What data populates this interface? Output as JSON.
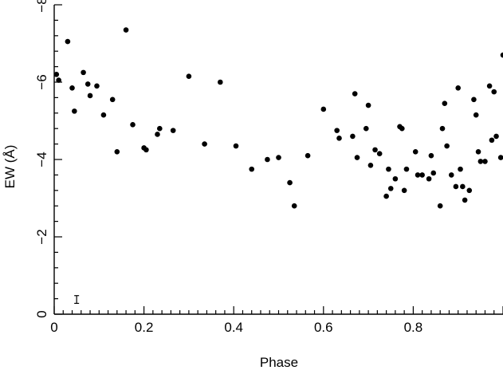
{
  "chart_data": {
    "type": "scatter",
    "title": "",
    "xlabel": "Phase",
    "ylabel": "EW (Å)",
    "xlim": [
      0,
      1.0
    ],
    "ylim": [
      0,
      -8
    ],
    "x_ticks": [
      0,
      0.2,
      0.4,
      0.6,
      0.8
    ],
    "x_tick_labels": [
      "0",
      "0.2",
      "0.4",
      "0.6",
      "0.8"
    ],
    "y_ticks": [
      0,
      -2,
      -4,
      -6,
      -8
    ],
    "y_tick_labels": [
      "0",
      "−2",
      "−4",
      "−6",
      "−8"
    ],
    "grid": false,
    "legend": "none",
    "error_bar": {
      "x": 0.05,
      "y_low": -0.28,
      "y_high": -0.48
    },
    "series": [
      {
        "points": [
          [
            0.005,
            -6.2
          ],
          [
            0.01,
            -6.05
          ],
          [
            0.03,
            -7.05
          ],
          [
            0.04,
            -5.85
          ],
          [
            0.045,
            -5.25
          ],
          [
            0.065,
            -6.25
          ],
          [
            0.075,
            -5.95
          ],
          [
            0.08,
            -5.65
          ],
          [
            0.095,
            -5.9
          ],
          [
            0.11,
            -5.15
          ],
          [
            0.13,
            -5.55
          ],
          [
            0.14,
            -4.2
          ],
          [
            0.16,
            -7.35
          ],
          [
            0.175,
            -4.9
          ],
          [
            0.2,
            -4.3
          ],
          [
            0.205,
            -4.25
          ],
          [
            0.23,
            -4.65
          ],
          [
            0.235,
            -4.8
          ],
          [
            0.265,
            -4.75
          ],
          [
            0.3,
            -6.15
          ],
          [
            0.335,
            -4.4
          ],
          [
            0.37,
            -6.0
          ],
          [
            0.405,
            -4.35
          ],
          [
            0.44,
            -3.75
          ],
          [
            0.475,
            -4.0
          ],
          [
            0.5,
            -4.05
          ],
          [
            0.525,
            -3.4
          ],
          [
            0.535,
            -2.8
          ],
          [
            0.565,
            -4.1
          ],
          [
            0.6,
            -5.3
          ],
          [
            0.63,
            -4.75
          ],
          [
            0.635,
            -4.55
          ],
          [
            0.665,
            -4.6
          ],
          [
            0.67,
            -5.7
          ],
          [
            0.675,
            -4.05
          ],
          [
            0.695,
            -4.8
          ],
          [
            0.7,
            -5.4
          ],
          [
            0.705,
            -3.85
          ],
          [
            0.715,
            -4.25
          ],
          [
            0.725,
            -4.15
          ],
          [
            0.74,
            -3.05
          ],
          [
            0.745,
            -3.75
          ],
          [
            0.75,
            -3.25
          ],
          [
            0.76,
            -3.5
          ],
          [
            0.77,
            -4.85
          ],
          [
            0.775,
            -4.8
          ],
          [
            0.78,
            -3.2
          ],
          [
            0.785,
            -3.75
          ],
          [
            0.805,
            -4.2
          ],
          [
            0.81,
            -3.6
          ],
          [
            0.82,
            -3.6
          ],
          [
            0.835,
            -3.5
          ],
          [
            0.84,
            -4.1
          ],
          [
            0.845,
            -3.65
          ],
          [
            0.86,
            -2.8
          ],
          [
            0.865,
            -4.8
          ],
          [
            0.87,
            -5.45
          ],
          [
            0.875,
            -4.35
          ],
          [
            0.885,
            -3.6
          ],
          [
            0.895,
            -3.3
          ],
          [
            0.9,
            -5.85
          ],
          [
            0.905,
            -3.75
          ],
          [
            0.91,
            -3.3
          ],
          [
            0.915,
            -2.95
          ],
          [
            0.925,
            -3.2
          ],
          [
            0.935,
            -5.55
          ],
          [
            0.94,
            -5.15
          ],
          [
            0.945,
            -4.2
          ],
          [
            0.95,
            -3.95
          ],
          [
            0.96,
            -3.95
          ],
          [
            0.97,
            -5.9
          ],
          [
            0.975,
            -4.5
          ],
          [
            0.98,
            -5.75
          ],
          [
            0.985,
            -4.6
          ],
          [
            0.995,
            -4.05
          ],
          [
            1.0,
            -6.7
          ]
        ]
      }
    ]
  }
}
